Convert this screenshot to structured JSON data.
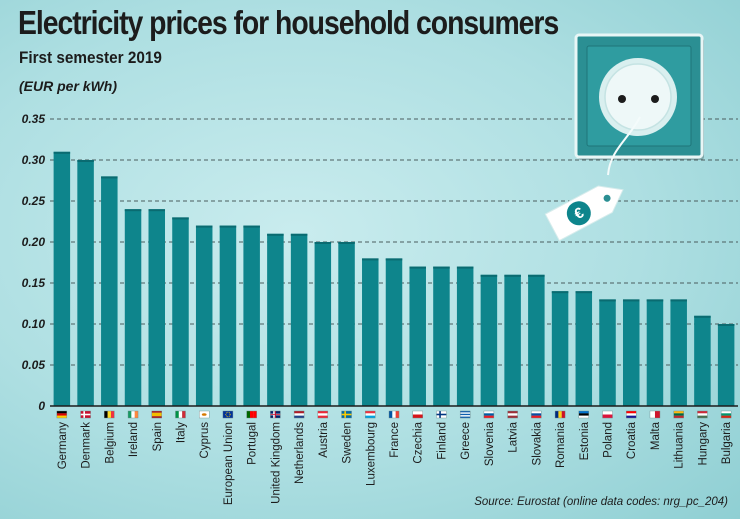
{
  "header": {
    "title": "Electricity prices for household consumers",
    "subtitle": "First semester 2019",
    "unit": "(EUR per kWh)"
  },
  "footer": {
    "source": "Source: Eurostat (online data codes: nrg_pc_204)"
  },
  "colors": {
    "bar": "#0e858c",
    "bar_shade": "#0a6b71",
    "grid": "#4a5d5e",
    "axis": "#1c1c1c",
    "socket_plate": "#2b8f93",
    "tag": "#ffffff"
  },
  "illustration": {
    "socket_icon": "power-socket-icon",
    "tag_icon": "euro-price-tag-icon"
  },
  "chart_data": {
    "type": "bar",
    "title": "Electricity prices for household consumers",
    "subtitle": "First semester 2019",
    "ylabel": "(EUR per kWh)",
    "xlabel": "",
    "ylim": [
      0,
      0.35
    ],
    "yticks": [
      0,
      0.05,
      0.1,
      0.15,
      0.2,
      0.25,
      0.3,
      0.35
    ],
    "ytick_labels": [
      "0",
      "0.05",
      "0.10",
      "0.15",
      "0.20",
      "0.25",
      "0.30",
      "0.35"
    ],
    "grid": true,
    "categories": [
      "Germany",
      "Denmark",
      "Belgium",
      "Ireland",
      "Spain",
      "Italy",
      "Cyprus",
      "European Union",
      "Portugal",
      "United Kingdom",
      "Netherlands",
      "Austria",
      "Sweden",
      "Luxembourg",
      "France",
      "Czechia",
      "Finland",
      "Greece",
      "Slovenia",
      "Latvia",
      "Slovakia",
      "Romania",
      "Estonia",
      "Poland",
      "Croatia",
      "Malta",
      "Lithuania",
      "Hungary",
      "Bulgaria"
    ],
    "values": [
      0.31,
      0.3,
      0.28,
      0.24,
      0.24,
      0.23,
      0.22,
      0.22,
      0.22,
      0.21,
      0.21,
      0.2,
      0.2,
      0.18,
      0.18,
      0.17,
      0.17,
      0.17,
      0.16,
      0.16,
      0.16,
      0.14,
      0.14,
      0.13,
      0.13,
      0.13,
      0.13,
      0.11,
      0.1
    ],
    "flags": [
      "de",
      "dk",
      "be",
      "ie",
      "es",
      "it",
      "cy",
      "eu",
      "pt",
      "uk",
      "nl",
      "at",
      "se",
      "lu",
      "fr",
      "cz",
      "fi",
      "gr",
      "si",
      "lv",
      "sk",
      "ro",
      "ee",
      "pl",
      "hr",
      "mt",
      "lt",
      "hu",
      "bg"
    ]
  }
}
